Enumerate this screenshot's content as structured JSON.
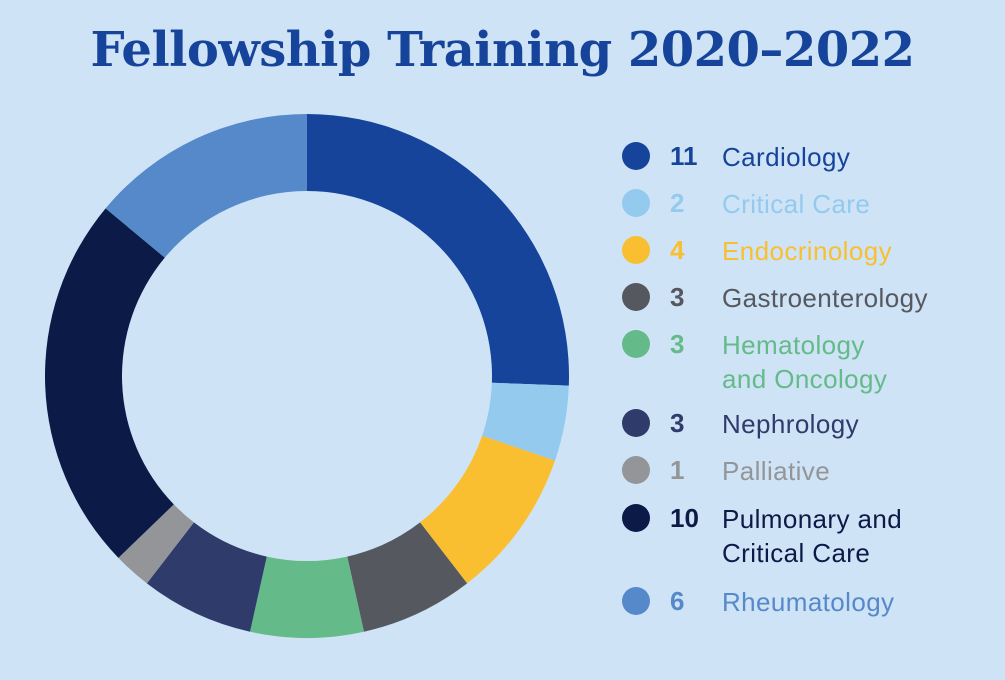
{
  "chart_data": {
    "type": "pie",
    "title": "Fellowship Training 2020–2022",
    "donut": true,
    "categories": [
      "Cardiology",
      "Critical Care",
      "Endocrinology",
      "Gastroenterology",
      "Hematology\nand Oncology",
      "Nephrology",
      "Palliative",
      "Pulmonary and\nCritical Care",
      "Rheumatology"
    ],
    "values": [
      11,
      2,
      4,
      3,
      3,
      3,
      1,
      10,
      6
    ],
    "colors": [
      "#17449b",
      "#93caee",
      "#f9bf30",
      "#55585f",
      "#64bb89",
      "#2e3b6b",
      "#939598",
      "#0b1a47",
      "#5689c9"
    ],
    "legend_position": "right"
  },
  "colors": {
    "background": "#cfe3f6",
    "title": "#17449b"
  }
}
